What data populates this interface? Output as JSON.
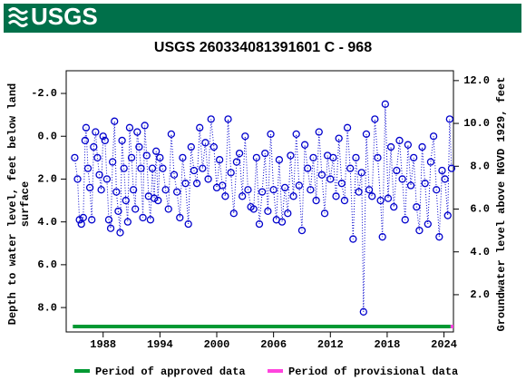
{
  "header": {
    "logo": "USGS"
  },
  "chart_data": {
    "type": "scatter",
    "title": "USGS 260334081391601 C  - 968",
    "y_label": [
      "Depth to water level, feet below land",
      "surface"
    ],
    "y2_label": "Groundwater level above NGVD 1929, feet",
    "xlim": [
      1984.1,
      2025.0
    ],
    "xticks": [
      1988,
      1994,
      2000,
      2006,
      2012,
      2018,
      2024
    ],
    "ylim": [
      -3.06,
      9.14
    ],
    "y_inverted": true,
    "yticks": [
      {
        "value": -2,
        "label": "-2.0"
      },
      {
        "value": 0,
        "label": "0.0"
      },
      {
        "value": 2,
        "label": "2.0"
      },
      {
        "value": 4,
        "label": "4.0"
      },
      {
        "value": 6,
        "label": "6.0"
      },
      {
        "value": 8,
        "label": "8.0"
      }
    ],
    "y2lim": [
      0.26,
      12.46
    ],
    "y2ticks": [
      {
        "value": 2,
        "label": "2.0"
      },
      {
        "value": 4,
        "label": "4.0"
      },
      {
        "value": 6,
        "label": "6.0"
      },
      {
        "value": 8,
        "label": "8.0"
      },
      {
        "value": 10,
        "label": "10.0"
      },
      {
        "value": 12,
        "label": "12.0"
      }
    ],
    "x": [
      1985.0,
      1985.3,
      1985.5,
      1985.7,
      1985.9,
      1986.1,
      1986.2,
      1986.4,
      1986.6,
      1986.8,
      1987.0,
      1987.2,
      1987.4,
      1987.6,
      1987.8,
      1988.0,
      1988.2,
      1988.4,
      1988.6,
      1988.8,
      1989.0,
      1989.2,
      1989.4,
      1989.6,
      1989.8,
      1990.0,
      1990.2,
      1990.4,
      1990.6,
      1990.8,
      1991.0,
      1991.2,
      1991.4,
      1991.6,
      1991.8,
      1992.0,
      1992.2,
      1992.4,
      1992.6,
      1992.8,
      1993.0,
      1993.2,
      1993.4,
      1993.6,
      1993.8,
      1994.0,
      1994.3,
      1994.6,
      1994.9,
      1995.2,
      1995.5,
      1995.8,
      1996.1,
      1996.4,
      1996.7,
      1997.0,
      1997.3,
      1997.6,
      1997.9,
      1998.2,
      1998.5,
      1998.8,
      1999.1,
      1999.4,
      1999.7,
      2000.0,
      2000.3,
      2000.6,
      2000.9,
      2001.2,
      2001.5,
      2001.8,
      2002.1,
      2002.4,
      2002.7,
      2003.0,
      2003.3,
      2003.6,
      2003.9,
      2004.2,
      2004.5,
      2004.8,
      2005.1,
      2005.4,
      2005.7,
      2006.0,
      2006.3,
      2006.6,
      2006.9,
      2007.2,
      2007.5,
      2007.8,
      2008.1,
      2008.4,
      2008.7,
      2009.0,
      2009.3,
      2009.6,
      2009.9,
      2010.2,
      2010.5,
      2010.8,
      2011.1,
      2011.4,
      2011.7,
      2012.0,
      2012.3,
      2012.6,
      2012.9,
      2013.2,
      2013.5,
      2013.8,
      2014.1,
      2014.4,
      2014.7,
      2015.0,
      2015.3,
      2015.5,
      2015.8,
      2016.1,
      2016.4,
      2016.7,
      2017.0,
      2017.3,
      2017.5,
      2017.8,
      2018.1,
      2018.4,
      2018.7,
      2019.0,
      2019.3,
      2019.6,
      2019.9,
      2020.2,
      2020.5,
      2020.8,
      2021.1,
      2021.4,
      2021.7,
      2022.0,
      2022.3,
      2022.6,
      2022.9,
      2023.2,
      2023.5,
      2023.8,
      2024.1,
      2024.4,
      2024.6,
      2024.8
    ],
    "series": [
      {
        "color": "#0000cc",
        "values": [
          1.0,
          2.0,
          3.9,
          4.1,
          3.8,
          0.2,
          -0.4,
          1.5,
          2.4,
          3.9,
          0.5,
          -0.2,
          1.0,
          1.8,
          2.5,
          0.0,
          0.2,
          2.0,
          3.9,
          4.3,
          1.2,
          -0.7,
          2.6,
          3.5,
          4.5,
          0.2,
          1.5,
          3.0,
          4.0,
          -0.4,
          1.0,
          2.5,
          3.4,
          -0.2,
          0.5,
          1.5,
          3.8,
          -0.5,
          0.9,
          2.8,
          3.9,
          1.5,
          2.9,
          0.7,
          3.0,
          1.0,
          1.5,
          2.5,
          3.4,
          -0.1,
          1.8,
          2.6,
          3.8,
          1.0,
          2.2,
          4.1,
          0.5,
          1.6,
          2.2,
          -0.4,
          1.5,
          0.3,
          2.0,
          -0.8,
          0.5,
          2.4,
          1.1,
          2.3,
          2.8,
          -0.8,
          1.7,
          3.6,
          1.2,
          0.8,
          2.8,
          0.0,
          2.5,
          3.3,
          3.4,
          1.0,
          4.1,
          2.6,
          0.8,
          3.5,
          -0.1,
          2.5,
          3.9,
          1.1,
          4.0,
          2.4,
          3.6,
          0.9,
          2.8,
          -0.1,
          2.3,
          4.4,
          0.4,
          1.5,
          2.5,
          1.0,
          3.0,
          -0.2,
          1.8,
          3.6,
          0.9,
          2.0,
          1.0,
          2.8,
          0.1,
          2.2,
          3.0,
          -0.4,
          1.5,
          4.8,
          1.0,
          2.6,
          1.7,
          8.2,
          -0.1,
          2.5,
          2.8,
          -0.8,
          1.0,
          3.0,
          4.7,
          -1.5,
          2.9,
          0.5,
          3.3,
          1.6,
          0.2,
          2.0,
          3.9,
          0.4,
          2.3,
          1.0,
          3.3,
          4.4,
          0.5,
          2.2,
          4.1,
          1.2,
          0.0,
          2.5,
          4.7,
          1.6,
          2.0,
          3.7,
          -0.8,
          1.5
        ]
      }
    ],
    "periods": [
      {
        "name": "Period of approved data",
        "color": "#009933",
        "range": [
          1984.8,
          2024.7
        ]
      },
      {
        "name": "Period of provisional data",
        "color": "#ff44dd",
        "range": [
          2024.7,
          2025.0
        ]
      }
    ]
  }
}
